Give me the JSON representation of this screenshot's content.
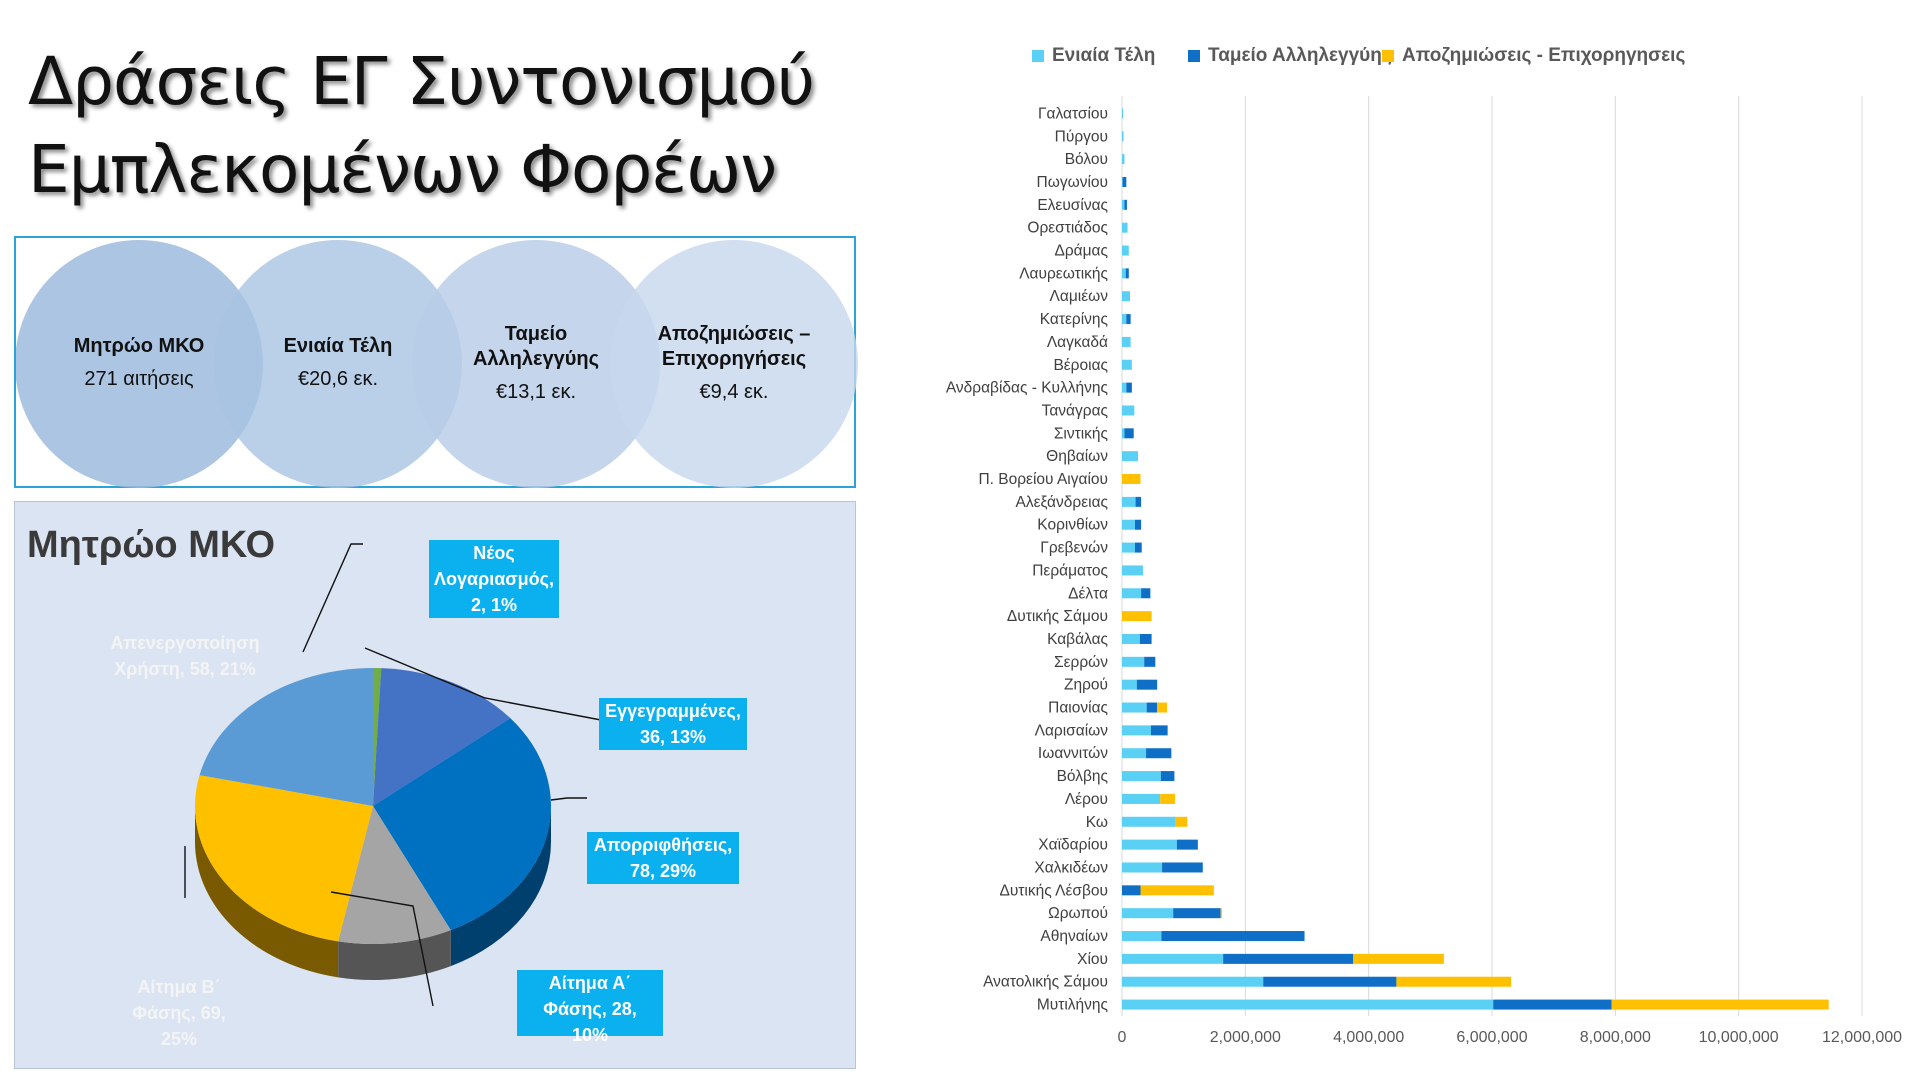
{
  "page": {
    "title_line1": "Δράσεις ΕΓ Συντονισμού",
    "title_line2": "Εμπλεκομένων Φορέων"
  },
  "summary": [
    {
      "heading": "Μητρώο ΜΚΟ",
      "value": "271 αιτήσεις",
      "color": "#9dbbdd"
    },
    {
      "heading": "Ενιαία Τέλη",
      "value": "€20,6 εκ.",
      "color": "#a9c3e2"
    },
    {
      "heading": "Ταμείο Αλληλεγγύης",
      "value": "€13,1 εκ.",
      "color": "#b6cce7"
    },
    {
      "heading": "Αποζημιώσεις – Επιχορηγήσεις",
      "value": "€9,4 εκ.",
      "color": "#c7d7ee"
    }
  ],
  "pie_panel": {
    "title": "Μητρώο ΜΚΟ",
    "labels": [
      {
        "line1": "Νέος",
        "line2": "Λογαριασμός,",
        "line3": "2, 1%"
      },
      {
        "line1": "Εγγεγραμμένες,",
        "line2": "36, 13%"
      },
      {
        "line1": "Απορριφθήσεις,",
        "line2": "78, 29%"
      },
      {
        "line1": "Αίτημα Α΄",
        "line2": "Φάσης, 28,",
        "line3": "10%"
      },
      {
        "line1": "Αίτημα Β΄",
        "line2": "Φάσης, 69,",
        "line3": "25%"
      },
      {
        "line1": "Απενεργοποίηση",
        "line2": "Χρήστη, 58, 21%"
      }
    ]
  },
  "chart_data": [
    {
      "type": "pie",
      "title": "Μητρώο ΜΚΟ",
      "categories": [
        "Νέος Λογαριασμός",
        "Εγγεγραμμένες",
        "Απορριφθήσεις",
        "Αίτημα Α΄ Φάσης",
        "Αίτημα Β΄ Φάσης",
        "Απενεργοποίηση Χρήστη"
      ],
      "values": [
        2,
        36,
        78,
        28,
        69,
        58
      ],
      "percents": [
        "1%",
        "13%",
        "29%",
        "10%",
        "25%",
        "21%"
      ],
      "colors": [
        "#70ad47",
        "#4472c4",
        "#0070c0",
        "#a5a5a5",
        "#ffc000",
        "#5b9bd5"
      ],
      "side_colors": [
        "#507f33",
        "#2f4f8a",
        "#00406e",
        "#555555",
        "#7a5a00",
        "#3c6e99"
      ]
    },
    {
      "type": "bar",
      "orientation": "horizontal",
      "stacked": true,
      "categories": [
        "Γαλατσίου",
        "Πύργου",
        "Βόλου",
        "Πωγωνίου",
        "Ελευσίνας",
        "Ορεστιάδος",
        "Δράμας",
        "Λαυρεωτικής",
        "Λαμιέων",
        "Κατερίνης",
        "Λαγκαδά",
        "Βέροιας",
        "Ανδραβίδας - Κυλλήνης",
        "Τανάγρας",
        "Σιντικής",
        "Θηβαίων",
        "Π. Βορείου Αιγαίου",
        "Αλεξάνδρειας",
        "Κορινθίων",
        "Γρεβενών",
        "Περάματος",
        "Δέλτα",
        "Δυτικής Σάμου",
        "Καβάλας",
        "Σερρών",
        "Ζηρού",
        "Παιονίας",
        "Λαρισαίων",
        "Ιωαννιτών",
        "Βόλβης",
        "Λέρου",
        "Κω",
        "Χαϊδαρίου",
        "Χαλκιδέων",
        "Δυτικής Λέσβου",
        "Ωρωπού",
        "Αθηναίων",
        "Χίου",
        "Ανατολικής Σάμου",
        "Μυτιλήνης"
      ],
      "series": [
        {
          "name": "Ενιαία Τέλη",
          "color": "#5bd0f5",
          "values": [
            20000,
            25000,
            40000,
            10000,
            40000,
            90000,
            110000,
            60000,
            130000,
            70000,
            140000,
            160000,
            70000,
            200000,
            40000,
            260000,
            0,
            220000,
            210000,
            210000,
            340000,
            310000,
            0,
            290000,
            360000,
            240000,
            400000,
            470000,
            390000,
            630000,
            620000,
            870000,
            890000,
            650000,
            0,
            830000,
            640000,
            1640000,
            2290000,
            6020000
          ]
        },
        {
          "name": "Ταμείο Αλληλεγγύης",
          "color": "#0f6ec6",
          "values": [
            0,
            0,
            0,
            60000,
            40000,
            0,
            0,
            50000,
            0,
            70000,
            0,
            0,
            90000,
            0,
            150000,
            0,
            0,
            90000,
            100000,
            110000,
            0,
            150000,
            0,
            190000,
            180000,
            330000,
            170000,
            270000,
            410000,
            220000,
            0,
            0,
            340000,
            660000,
            300000,
            770000,
            2320000,
            2110000,
            2160000,
            1920000
          ]
        },
        {
          "name": "Αποζημιώσεις - Επιχορηγησεις",
          "color": "#ffc000",
          "values": [
            0,
            0,
            0,
            0,
            0,
            0,
            0,
            0,
            0,
            0,
            0,
            0,
            0,
            0,
            0,
            0,
            300000,
            0,
            0,
            0,
            0,
            0,
            480000,
            0,
            0,
            0,
            160000,
            0,
            0,
            0,
            240000,
            190000,
            0,
            0,
            1190000,
            20000,
            0,
            1470000,
            1860000,
            3520000
          ]
        }
      ],
      "xlim": [
        0,
        12000000
      ],
      "xticks": [
        0,
        2000000,
        4000000,
        6000000,
        8000000,
        10000000,
        12000000
      ],
      "xtick_labels": [
        "0",
        "2,000,000",
        "4,000,000",
        "6,000,000",
        "8,000,000",
        "10,000,000",
        "12,000,000"
      ],
      "grid": true,
      "legend_position": "top"
    }
  ]
}
